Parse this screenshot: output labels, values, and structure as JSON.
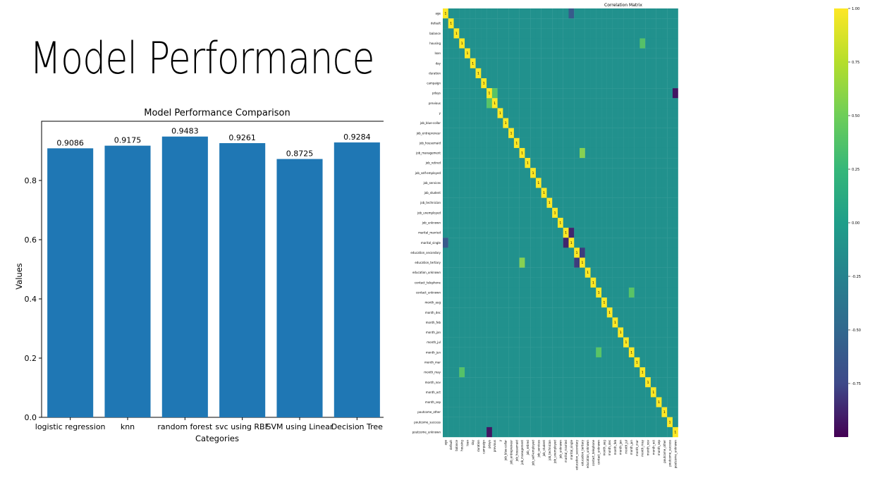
{
  "slide": {
    "title": "Model Performance"
  },
  "chart_data": [
    {
      "type": "bar",
      "title": "Model Performance Comparison",
      "xlabel": "Categories",
      "ylabel": "Values",
      "categories": [
        "logistic regression",
        "knn",
        "random forest",
        "svc using RBF",
        "SVM using Linear",
        "Decision Tree"
      ],
      "values": [
        0.9086,
        0.9175,
        0.9483,
        0.9261,
        0.8725,
        0.9284
      ],
      "value_labels": [
        "0.9086",
        "0.9175",
        "0.9483",
        "0.9261",
        "0.8725",
        "0.9284"
      ],
      "ylim": [
        0,
        1.0
      ],
      "yticks": [
        0.0,
        0.2,
        0.4,
        0.6,
        0.8
      ],
      "ytick_labels": [
        "0.0",
        "0.2",
        "0.4",
        "0.6",
        "0.8"
      ],
      "bar_color": "#1f77b4",
      "grid": false
    },
    {
      "type": "heatmap",
      "title": "Correlation Matrix",
      "labels": [
        "age",
        "default",
        "balance",
        "housing",
        "loan",
        "day",
        "duration",
        "campaign",
        "pdays",
        "previous",
        "y",
        "job_blue-collar",
        "job_entrepreneur",
        "job_housemaid",
        "job_management",
        "job_retired",
        "job_self-employed",
        "job_services",
        "job_student",
        "job_technician",
        "job_unemployed",
        "job_unknown",
        "marital_married",
        "marital_single",
        "education_secondary",
        "education_tertiary",
        "education_unknown",
        "contact_telephone",
        "contact_unknown",
        "month_aug",
        "month_dec",
        "month_feb",
        "month_jan",
        "month_jul",
        "month_jun",
        "month_mar",
        "month_may",
        "month_nov",
        "month_oct",
        "month_sep",
        "poutcome_other",
        "poutcome_success",
        "poutcome_unknown"
      ],
      "diagonal_value": "1",
      "colormap": "viridis",
      "vmin": -1.0,
      "vmax": 1.0,
      "colorbar_ticks": [
        1.0,
        0.75,
        0.5,
        0.25,
        0.0,
        -0.25,
        -0.5,
        -0.75
      ],
      "colorbar_labels": [
        "1.00",
        "0.75",
        "0.50",
        "0.25",
        "0.00",
        "-0.25",
        "-0.50",
        "-0.75"
      ],
      "notable_values": [
        {
          "row": "age",
          "col": "marital_single",
          "value": -0.43
        },
        {
          "row": "marital_married",
          "col": "marital_single",
          "value": -0.77
        },
        {
          "row": "job_management",
          "col": "education_tertiary",
          "value": 0.63
        },
        {
          "row": "education_secondary",
          "col": "education_tertiary",
          "value": -0.63
        },
        {
          "row": "pdays",
          "col": "poutcome_unknown",
          "value": -0.87
        },
        {
          "row": "pdays",
          "col": "previous",
          "value": 0.45
        },
        {
          "row": "housing",
          "col": "month_may",
          "value": 0.43
        },
        {
          "row": "contact_unknown",
          "col": "month_jun",
          "value": 0.46
        }
      ]
    }
  ]
}
